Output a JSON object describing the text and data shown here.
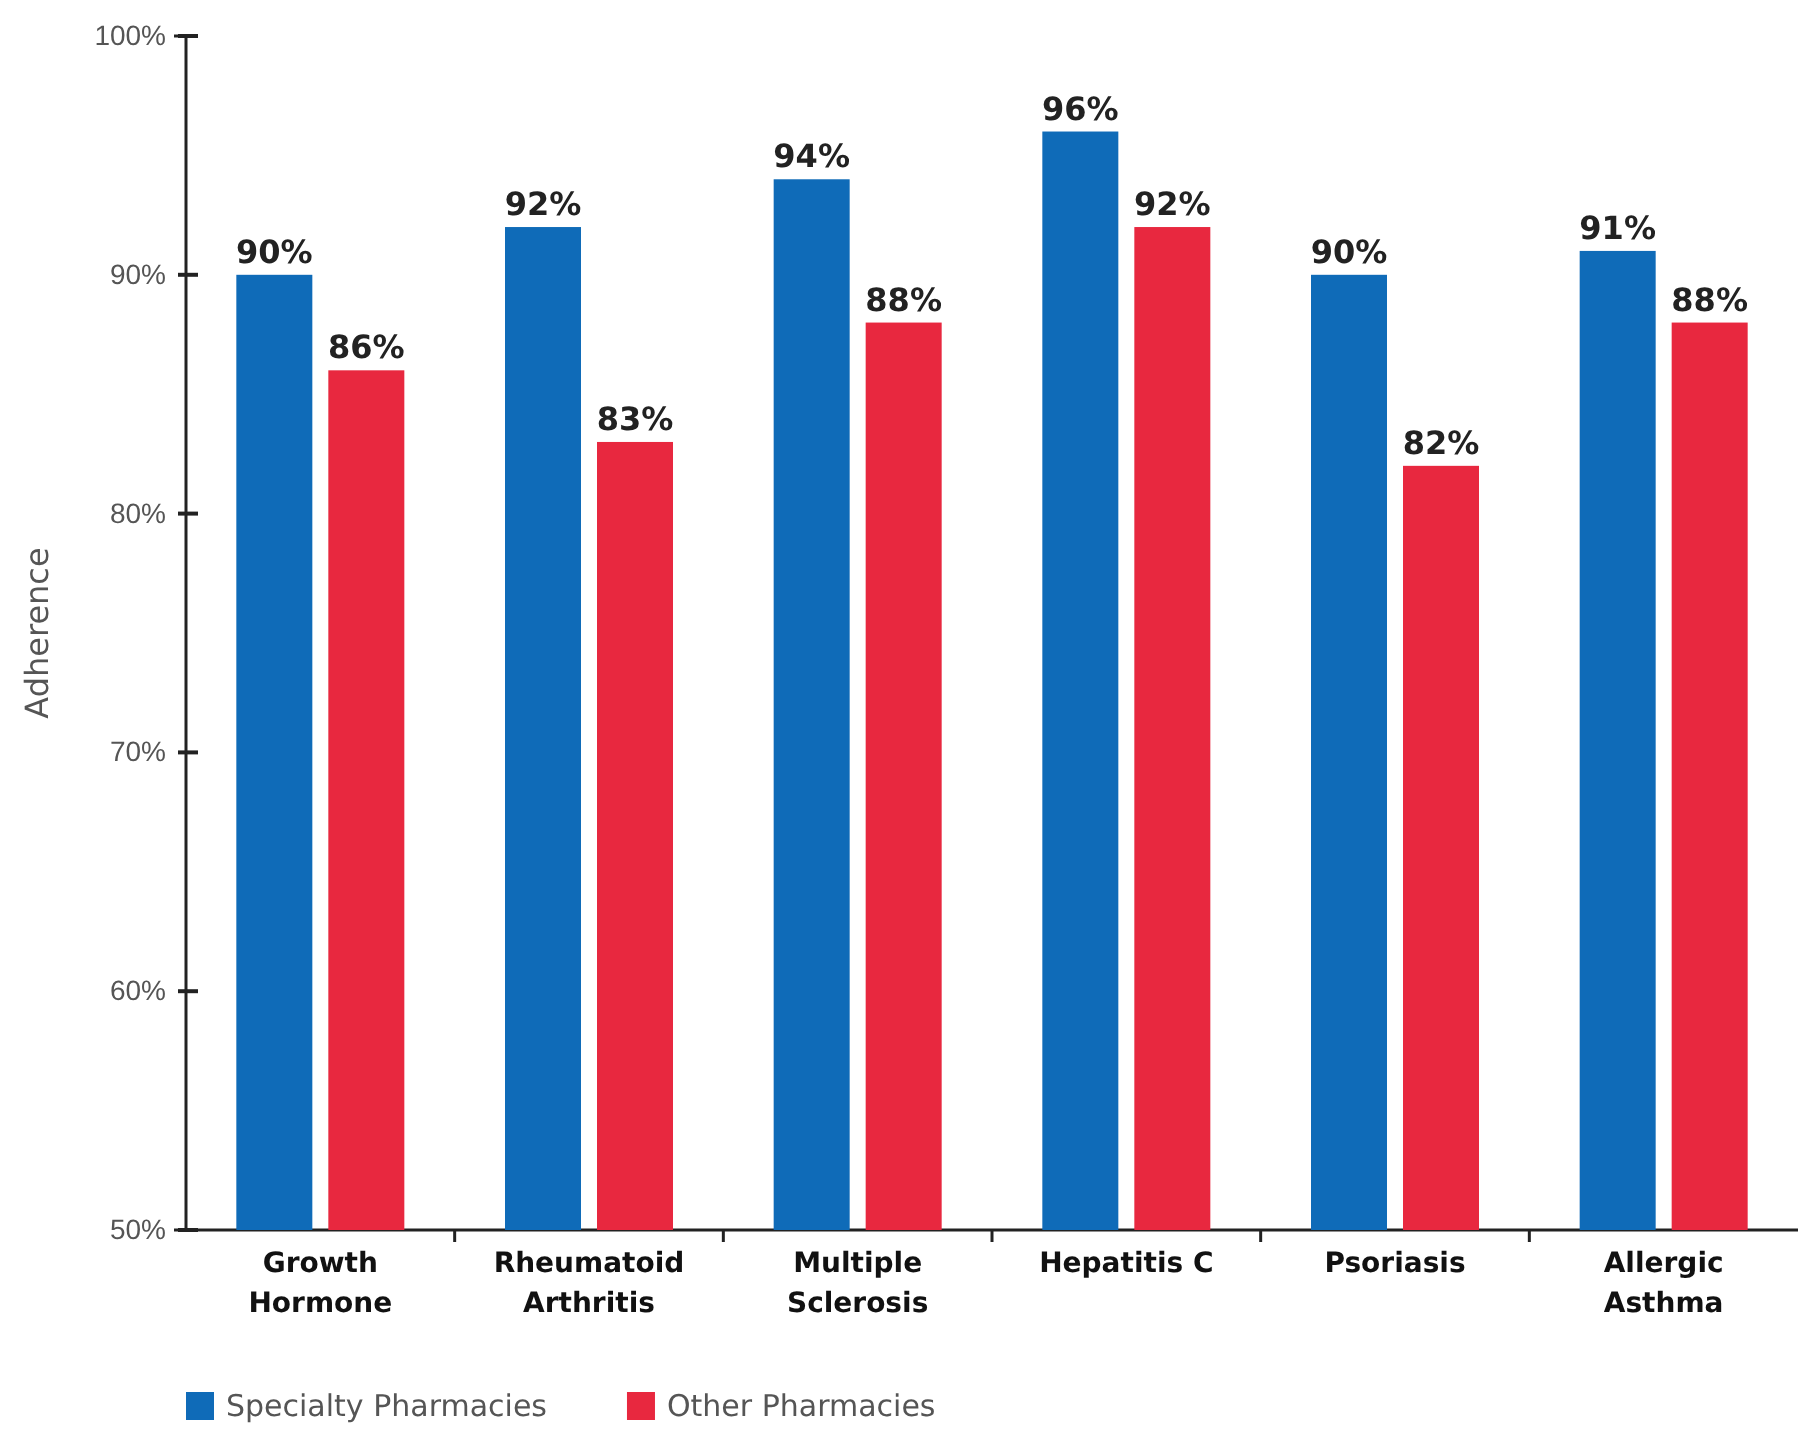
{
  "chart_data": {
    "type": "bar",
    "ylabel": "Adherence",
    "categories": [
      "Growth\nHormone",
      "Rheumatoid\nArthritis",
      "Multiple\nSclerosis",
      "Hepatitis C",
      "Psoriasis",
      "Allergic\nAsthma"
    ],
    "series": [
      {
        "name": "Specialty Pharmacies",
        "color": "#0f6bb8",
        "values": [
          90,
          92,
          94,
          96,
          90,
          91
        ],
        "value_labels": [
          "90%",
          "92%",
          "94%",
          "96%",
          "90%",
          "91%"
        ]
      },
      {
        "name": "Other Pharmacies",
        "color": "#e8283f",
        "values": [
          86,
          83,
          88,
          92,
          82,
          88
        ],
        "value_labels": [
          "86%",
          "83%",
          "88%",
          "92%",
          "82%",
          "88%"
        ]
      }
    ],
    "ylim": [
      50,
      100
    ],
    "yticks": [
      {
        "value": 50,
        "label": "50%"
      },
      {
        "value": 60,
        "label": "60%"
      },
      {
        "value": 70,
        "label": "70%"
      },
      {
        "value": 80,
        "label": "80%"
      },
      {
        "value": 90,
        "label": "90%"
      },
      {
        "value": 100,
        "label": "100%"
      }
    ],
    "grid": false,
    "legend": "bottom left"
  }
}
